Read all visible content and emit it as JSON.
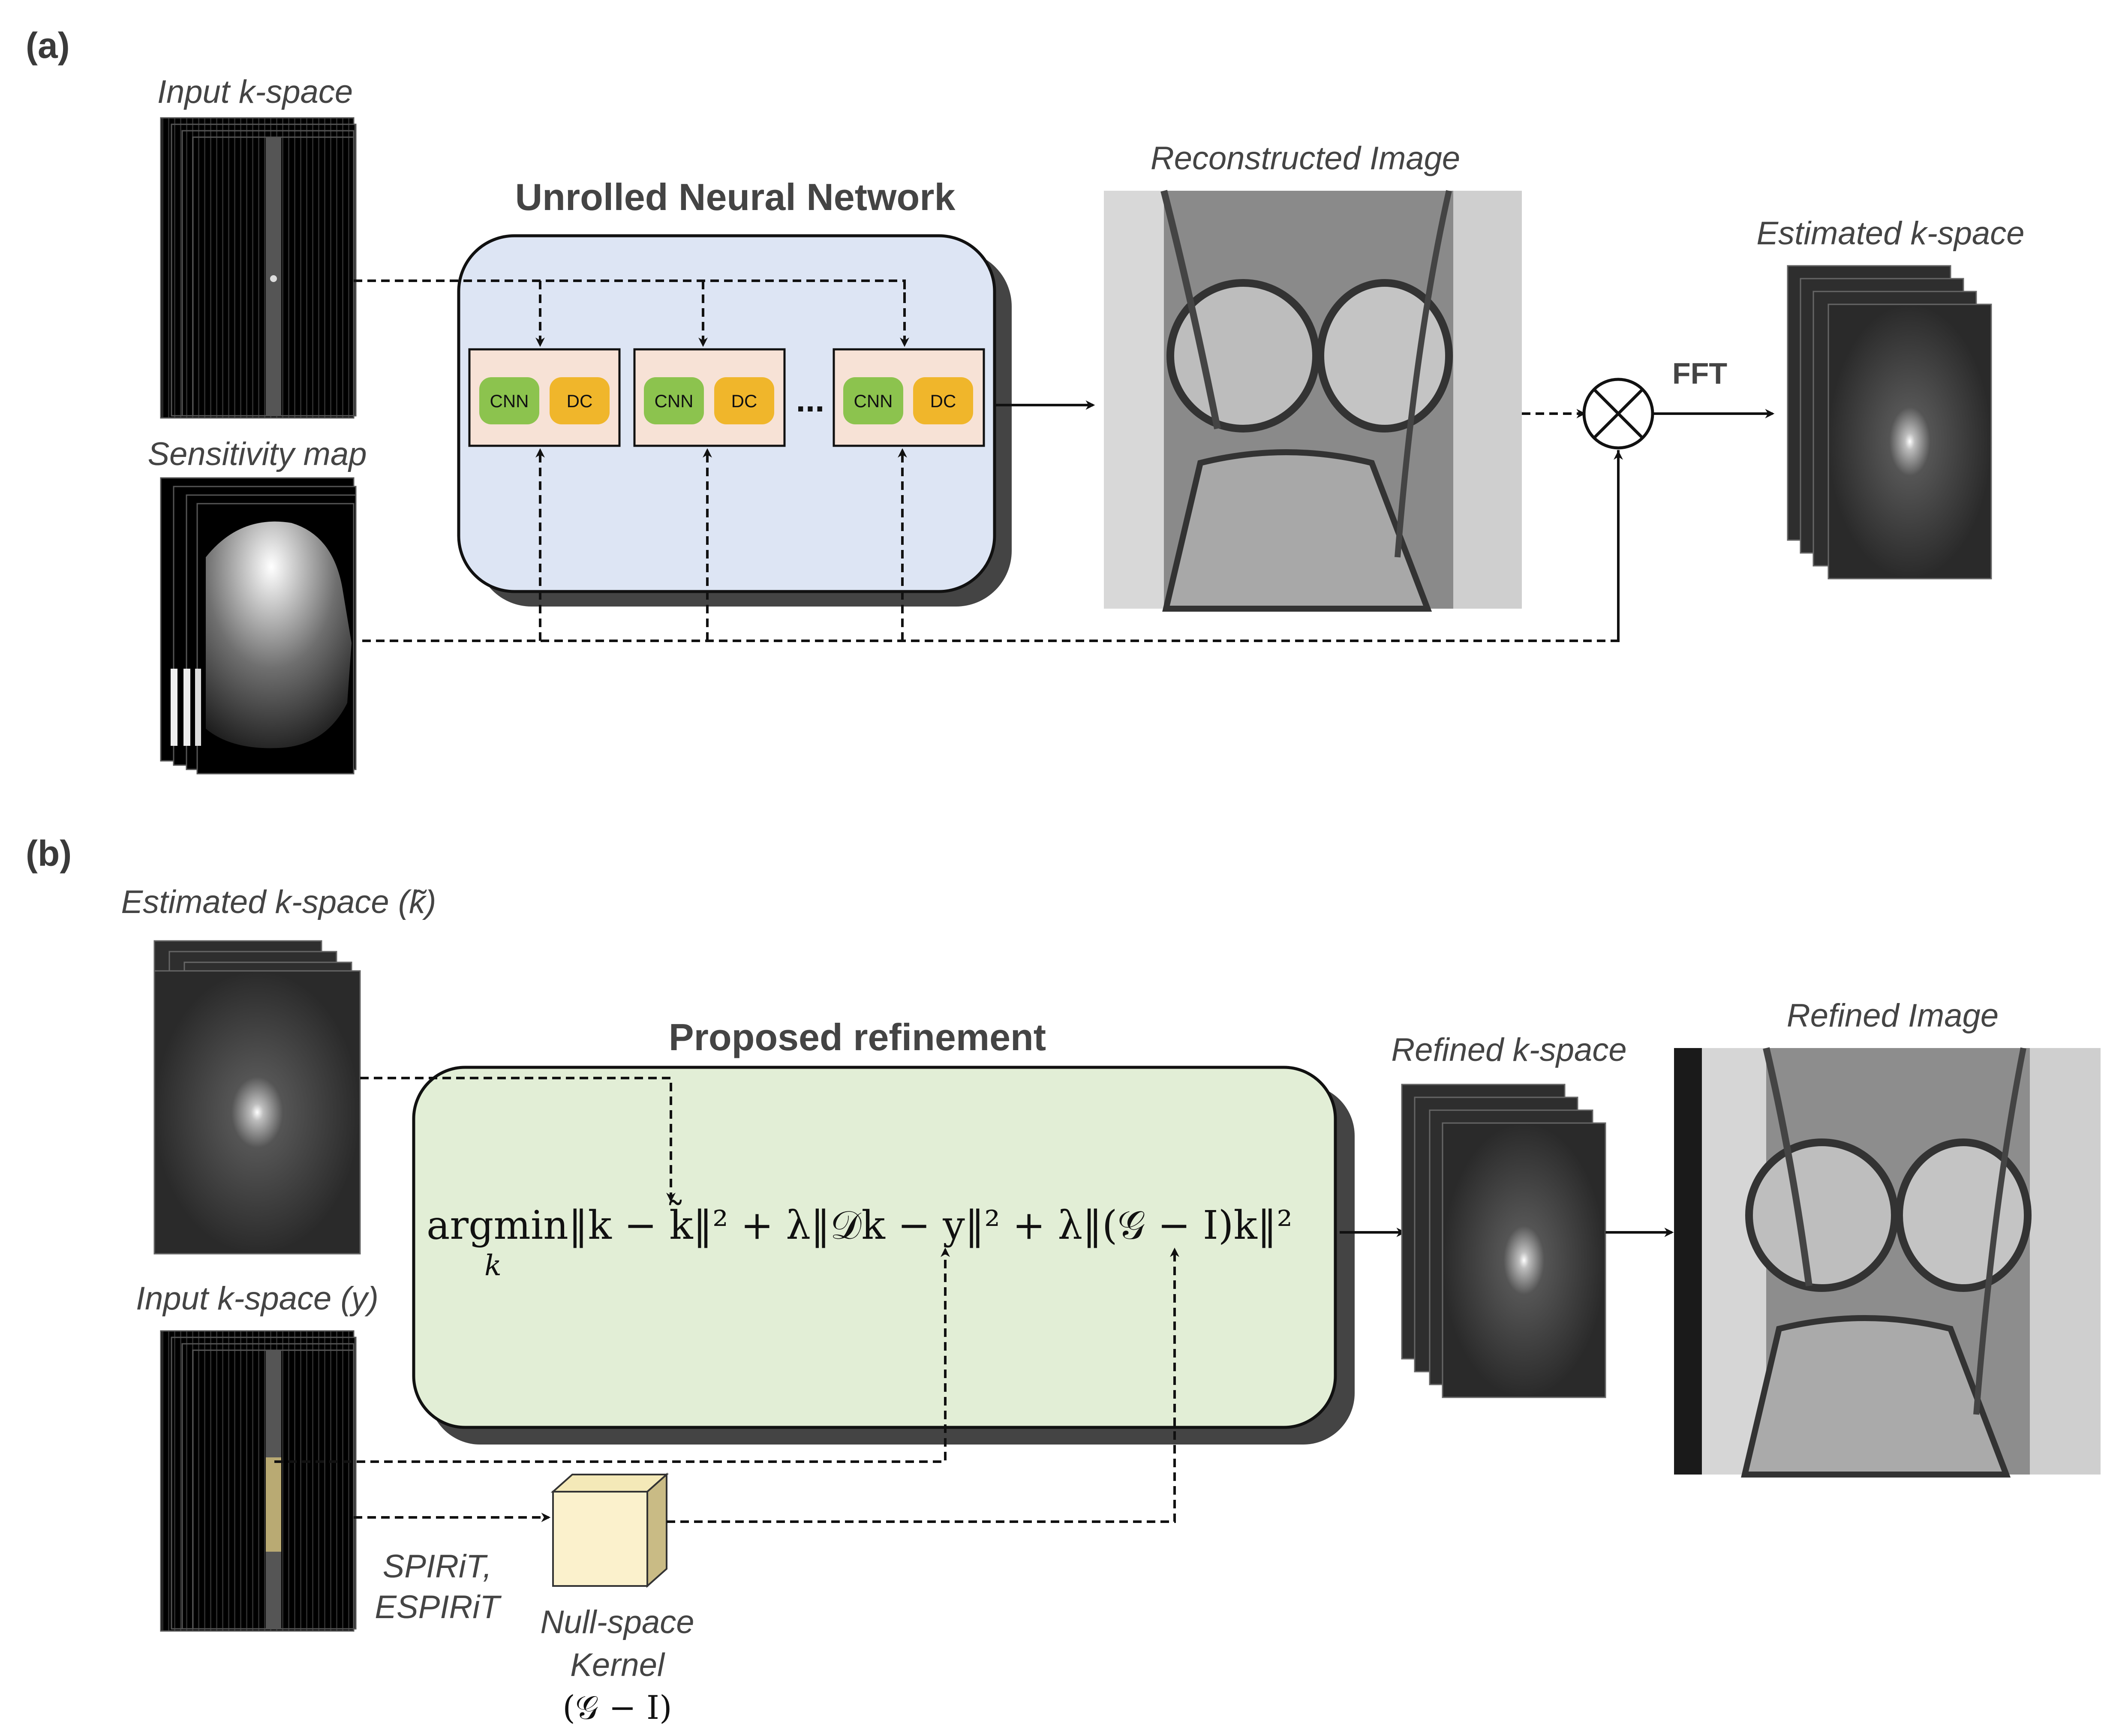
{
  "panel_a": {
    "label": "(a)",
    "input_kspace": "Input k-space",
    "sensitivity_map": "Sensitivity map",
    "network_title": "Unrolled Neural Network",
    "blocks": [
      {
        "cnn": "CNN",
        "dc": "DC"
      },
      {
        "cnn": "CNN",
        "dc": "DC"
      },
      {
        "cnn": "CNN",
        "dc": "DC"
      }
    ],
    "ellipsis": "...",
    "reconstructed_image": "Reconstructed Image",
    "fft": "FFT",
    "estimated_kspace": "Estimated k-space"
  },
  "panel_b": {
    "label": "(b)",
    "estimated_kspace": "Estimated k-space (k̃)",
    "input_kspace": "Input k-space (y)",
    "refinement_title": "Proposed refinement",
    "equation": "argmin‖k − k̃‖² + λ‖𝒟k − y‖² + λ‖(𝒢 − I)k‖²",
    "equation_subscript": "k",
    "refined_kspace": "Refined k-space",
    "refined_image": "Refined Image",
    "methods_line1": "SPIRiT,",
    "methods_line2": "ESPIRiT",
    "kernel_line1": "Null-space",
    "kernel_line2": "Kernel",
    "kernel_line3": "(𝒢 − I)"
  },
  "colors": {
    "network_fill": "#dde5f4",
    "refinement_fill": "#e2eed6",
    "block_fill": "#f7e2d6",
    "cnn_fill": "#8cc34e",
    "dc_fill": "#f0b62b",
    "cube_fill": "#fbf1cc",
    "shadow": "#444444"
  }
}
